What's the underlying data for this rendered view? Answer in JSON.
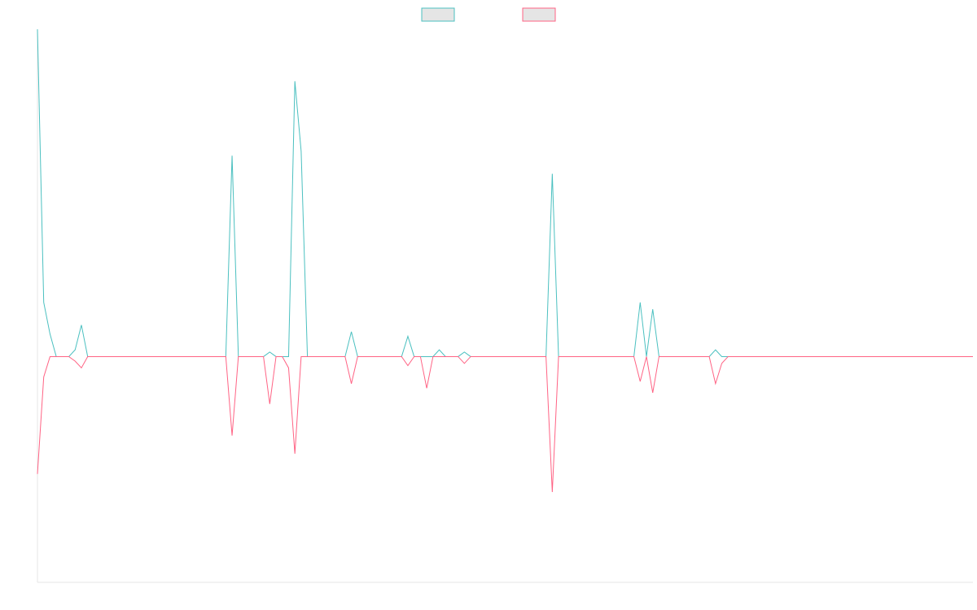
{
  "chart_data": {
    "type": "line",
    "title": "",
    "xlabel": "",
    "ylabel": "",
    "grid": false,
    "legend_placement": "top-center",
    "x_count": 150,
    "ylim": [
      -100,
      145
    ],
    "series": [
      {
        "color": "#4bc0c0",
        "legend_fill": "#e5e5e5",
        "points": [
          [
            0,
            145
          ],
          [
            1,
            24
          ],
          [
            2,
            10
          ],
          [
            6,
            3
          ],
          [
            7,
            14
          ],
          [
            31,
            89
          ],
          [
            37,
            2
          ],
          [
            38,
            0
          ],
          [
            40,
            0
          ],
          [
            41,
            122
          ],
          [
            42,
            91
          ],
          [
            50,
            11
          ],
          [
            59,
            9
          ],
          [
            64,
            3
          ],
          [
            68,
            2
          ],
          [
            82,
            81
          ],
          [
            96,
            24
          ],
          [
            98,
            21
          ],
          [
            108,
            3
          ]
        ]
      },
      {
        "color": "#ff6384",
        "legend_fill": "#e5e5e5",
        "points": [
          [
            0,
            -52
          ],
          [
            1,
            -9
          ],
          [
            6,
            -2
          ],
          [
            7,
            -5
          ],
          [
            31,
            -35
          ],
          [
            37,
            -21
          ],
          [
            40,
            -5
          ],
          [
            41,
            -43
          ],
          [
            50,
            -12
          ],
          [
            59,
            -4
          ],
          [
            62,
            -14
          ],
          [
            68,
            -3
          ],
          [
            82,
            -60
          ],
          [
            96,
            -11
          ],
          [
            98,
            -16
          ],
          [
            108,
            -12
          ],
          [
            109,
            -3
          ]
        ]
      }
    ]
  }
}
